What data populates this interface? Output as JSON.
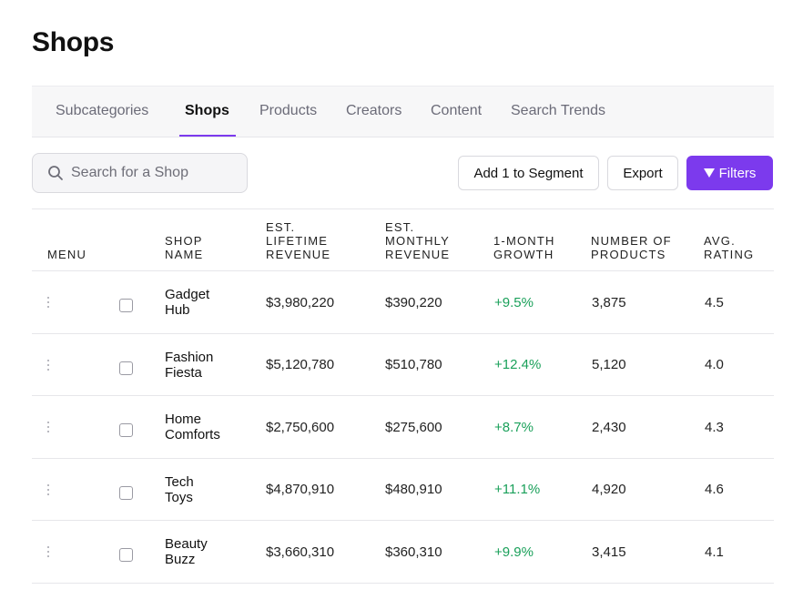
{
  "page": {
    "title": "Shops"
  },
  "tabs": [
    {
      "label": "Subcategories",
      "active": false
    },
    {
      "label": "Shops",
      "active": true
    },
    {
      "label": "Products",
      "active": false
    },
    {
      "label": "Creators",
      "active": false
    },
    {
      "label": "Content",
      "active": false
    },
    {
      "label": "Search Trends",
      "active": false
    }
  ],
  "toolbar": {
    "search_placeholder": "Search for a Shop",
    "segment_label": "Add 1 to Segment",
    "export_label": "Export",
    "filters_label": "Filters"
  },
  "colors": {
    "accent": "#7c3aed",
    "growth": "#1aa05a"
  },
  "table": {
    "headers": {
      "menu": "MENU",
      "shop_name": "SHOP\nNAME",
      "lifetime": "EST.\nLIFETIME\nREVENUE",
      "monthly": "EST.\nMONTHLY\nREVENUE",
      "growth": "1-MONTH\nGROWTH",
      "products": "NUMBER OF\nPRODUCTS",
      "rating": "AVG.\nRATING"
    },
    "rows": [
      {
        "name": "Gadget\nHub",
        "lifetime": "$3,980,220",
        "monthly": "$390,220",
        "growth": "+9.5%",
        "products": "3,875",
        "rating": "4.5"
      },
      {
        "name": "Fashion\nFiesta",
        "lifetime": "$5,120,780",
        "monthly": "$510,780",
        "growth": "+12.4%",
        "products": "5,120",
        "rating": "4.0"
      },
      {
        "name": "Home\nComforts",
        "lifetime": "$2,750,600",
        "monthly": "$275,600",
        "growth": "+8.7%",
        "products": "2,430",
        "rating": "4.3"
      },
      {
        "name": "Tech\nToys",
        "lifetime": "$4,870,910",
        "monthly": "$480,910",
        "growth": "+11.1%",
        "products": "4,920",
        "rating": "4.6"
      },
      {
        "name": "Beauty\nBuzz",
        "lifetime": "$3,660,310",
        "monthly": "$360,310",
        "growth": "+9.9%",
        "products": "3,415",
        "rating": "4.1"
      }
    ]
  }
}
